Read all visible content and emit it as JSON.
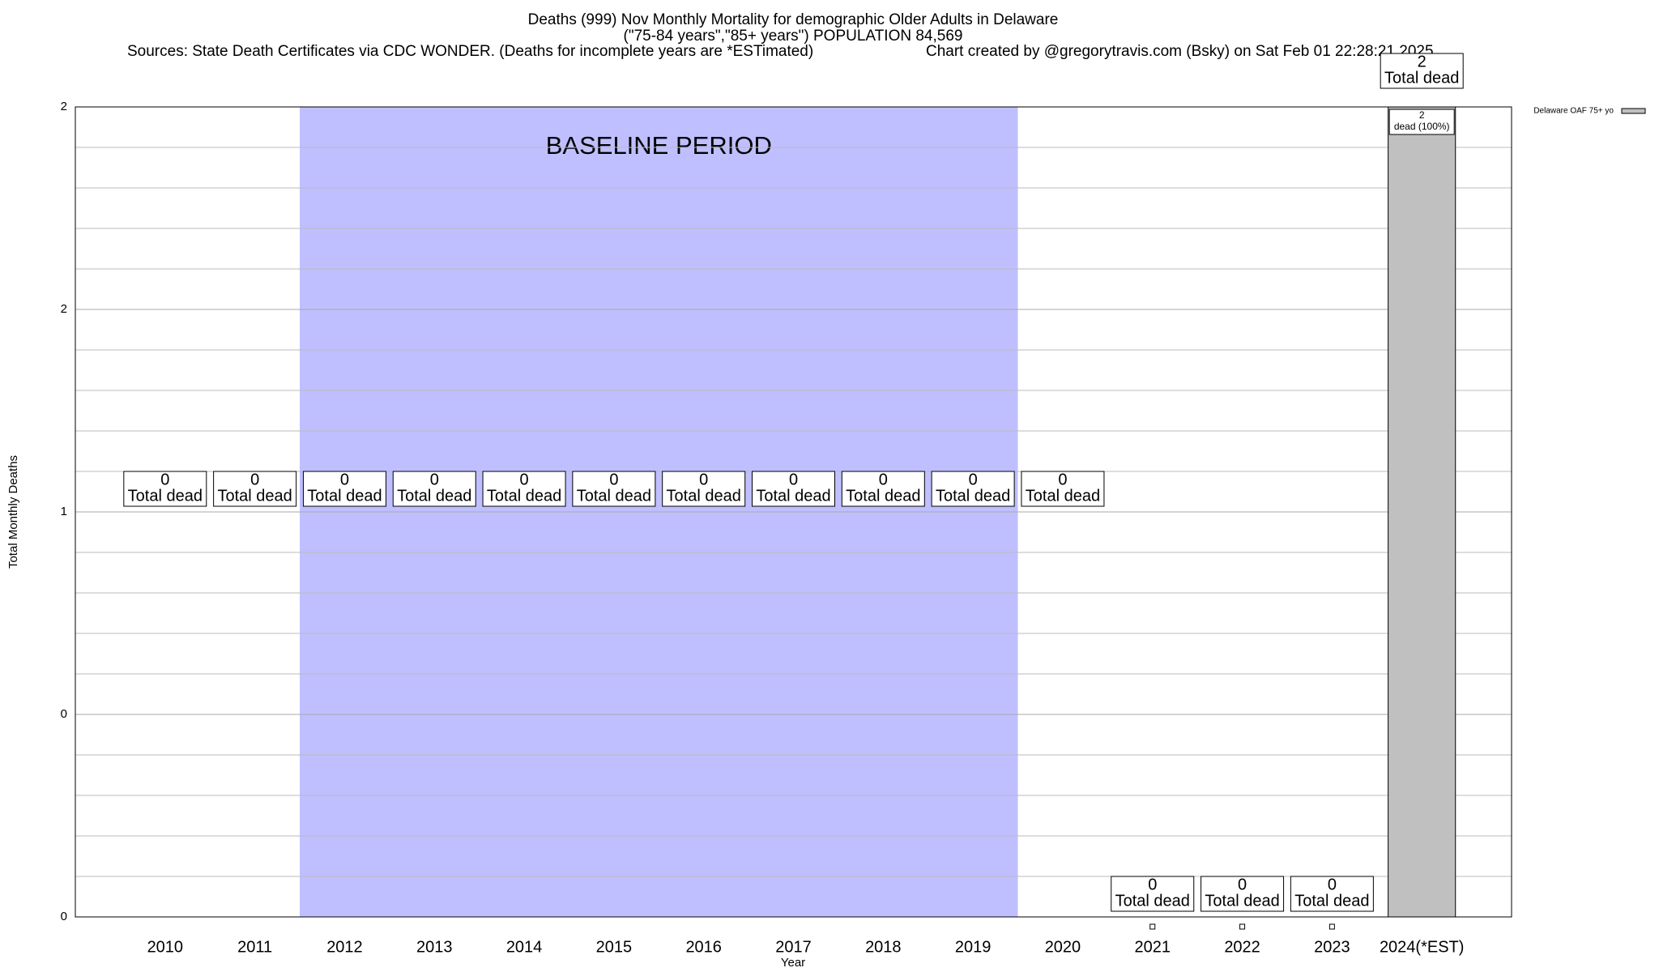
{
  "chart_data": {
    "type": "bar",
    "title": "Deaths (999) Nov Monthly Mortality for demographic Older Adults in Delaware",
    "subtitle": "(\"75-84 years\",\"85+ years\") POPULATION 84,569",
    "source": "Sources: State Death Certificates via CDC WONDER. (Deaths for incomplete years are *ESTimated)",
    "credit": "Chart created by @gregorytravis.com (Bsky) on Sat Feb 01 22:28:21 2025",
    "x_label": "Year",
    "y_label": "Total Monthly Deaths",
    "categories": [
      "2010",
      "2011",
      "2012",
      "2013",
      "2014",
      "2015",
      "2016",
      "2017",
      "2018",
      "2019",
      "2020",
      "2021",
      "2022",
      "2023",
      "2024(*EST)"
    ],
    "series": [
      {
        "name": "Delaware OAF 75+ yo",
        "color": "#c0c0c0",
        "values": [
          0,
          0,
          0,
          0,
          0,
          0,
          0,
          0,
          0,
          0,
          0,
          0,
          0,
          0,
          2
        ]
      }
    ],
    "bar_label": "Total dead",
    "inner_label": "dead (100%)",
    "baseline": {
      "label": "BASELINE PERIOD",
      "start": "2012",
      "end": "2019",
      "color": "#bfbfff"
    },
    "ylim": [
      0,
      2
    ],
    "yticks": [
      {
        "value": 0,
        "label": "0"
      },
      {
        "value": 0.5,
        "label": "0"
      },
      1,
      {
        "value": 1.5,
        "label": "2"
      },
      2
    ],
    "minor_yticks": [
      0.1,
      0.2,
      0.3,
      0.4,
      0.6,
      0.7,
      0.8,
      0.9,
      1.1,
      1.2,
      1.3,
      1.4,
      1.6,
      1.7,
      1.8,
      1.9
    ],
    "grid": true,
    "legend": "top-right"
  }
}
